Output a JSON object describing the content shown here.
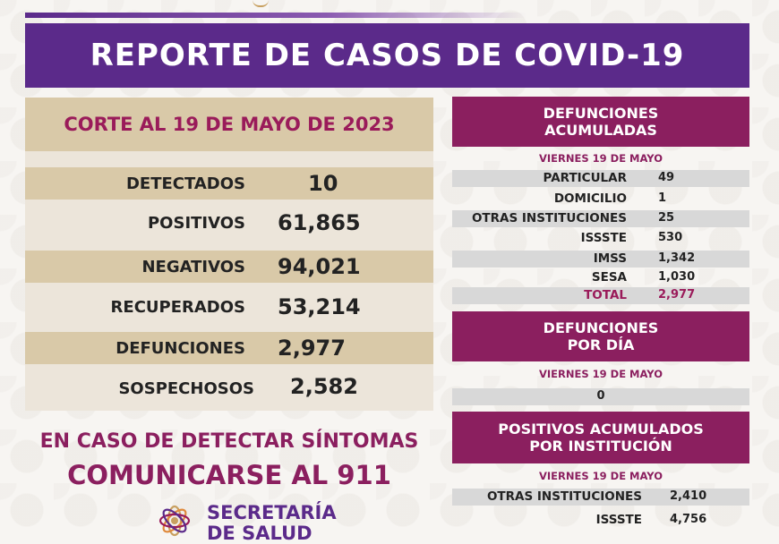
{
  "header": {
    "title": "REPORTE DE CASOS DE COVID-19"
  },
  "summary": {
    "corte": "CORTE AL 19 DE MAYO DE 2023",
    "rows": [
      {
        "label": "DETECTADOS",
        "value": "10"
      },
      {
        "label": "POSITIVOS",
        "value": "61,865"
      },
      {
        "label": "NEGATIVOS",
        "value": "94,021"
      },
      {
        "label": "RECUPERADOS",
        "value": "53,214"
      },
      {
        "label": "DEFUNCIONES",
        "value": "2,977"
      },
      {
        "label": "SOSPECHOSOS",
        "value": "2,582"
      }
    ]
  },
  "defunciones_acumuladas": {
    "title_line1": "DEFUNCIONES",
    "title_line2": "ACUMULADAS",
    "date": "VIERNES 19 DE MAYO",
    "rows": [
      {
        "label": "PARTICULAR",
        "value": "49"
      },
      {
        "label": "DOMICILIO",
        "value": "1"
      },
      {
        "label": "OTRAS INSTITUCIONES",
        "value": "25"
      },
      {
        "label": "ISSSTE",
        "value": "530"
      },
      {
        "label": "IMSS",
        "value": "1,342"
      },
      {
        "label": "SESA",
        "value": "1,030"
      },
      {
        "label": "TOTAL",
        "value": "2,977"
      }
    ]
  },
  "defunciones_por_dia": {
    "title_line1": "DEFUNCIONES",
    "title_line2": "POR DÍA",
    "date": "VIERNES 19 DE MAYO",
    "value": "0"
  },
  "positivos_acumulados": {
    "title_line1": "POSITIVOS ACUMULADOS",
    "title_line2": "POR INSTITUCIÓN",
    "date": "VIERNES 19 DE MAYO",
    "rows": [
      {
        "label": "OTRAS INSTITUCIONES",
        "value": "2,410"
      },
      {
        "label": "ISSSTE",
        "value": "4,756"
      }
    ]
  },
  "cta": {
    "line1": "EN CASO DE DETECTAR SÍNTOMAS",
    "line2": "COMUNICARSE AL 911"
  },
  "brand": {
    "line1": "SECRETARÍA",
    "line2": "DE SALUD"
  },
  "colors": {
    "purple": "#5b2a8a",
    "magenta": "#8b1f5f",
    "beige": "#d9c9a8",
    "gold": "#c8a060"
  },
  "icons": {
    "logo": "secretaria-de-salud-flower-logo"
  }
}
